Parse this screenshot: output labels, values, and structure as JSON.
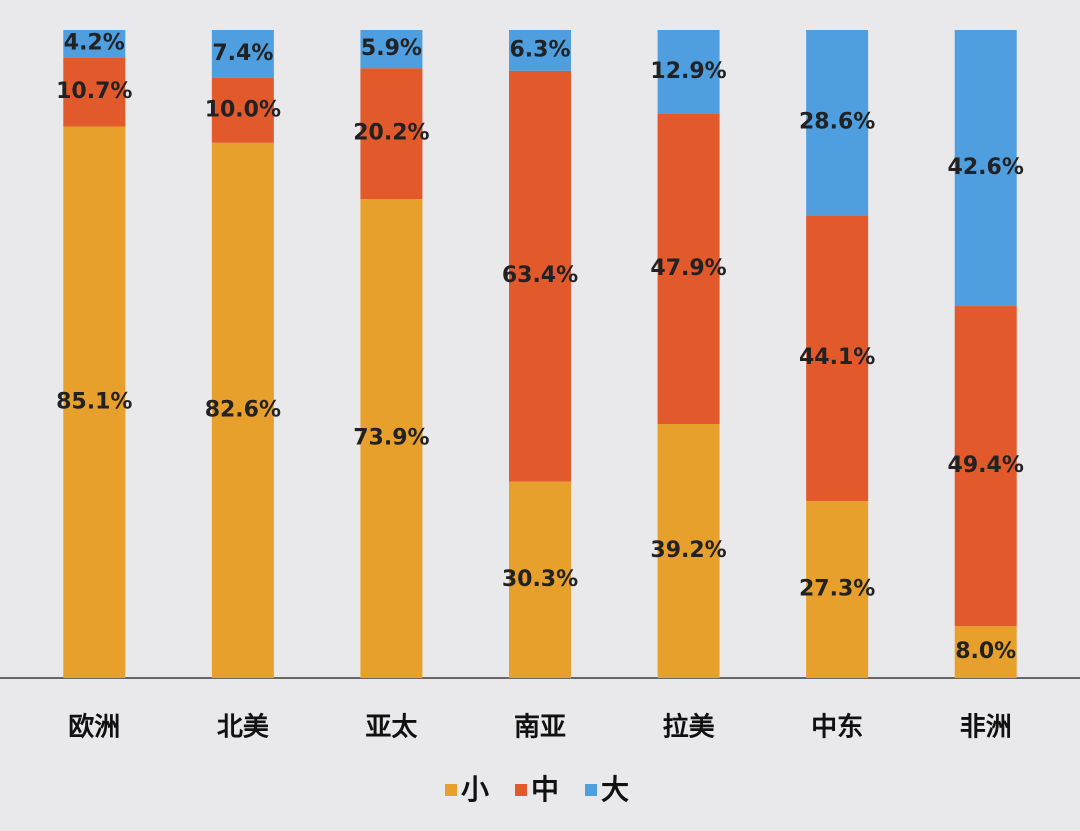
{
  "chart_data": {
    "type": "stacked_bar",
    "categories": [
      "欧洲",
      "北美",
      "亚太",
      "南亚",
      "拉美",
      "中东",
      "非洲"
    ],
    "series": [
      {
        "name": "小",
        "color": "#e8a02c",
        "values": [
          85.1,
          82.6,
          73.9,
          30.3,
          39.2,
          27.3,
          8.0
        ],
        "value_labels": [
          "85.1%",
          "82.6%",
          "73.9%",
          "30.3%",
          "39.2%",
          "27.3%",
          "8.0%"
        ]
      },
      {
        "name": "中",
        "color": "#e2592c",
        "values": [
          10.7,
          10.0,
          20.2,
          63.4,
          47.9,
          44.1,
          49.4
        ],
        "value_labels": [
          "10.7%",
          "10.0%",
          "20.2%",
          "63.4%",
          "47.9%",
          "44.1%",
          "49.4%"
        ]
      },
      {
        "name": "大",
        "color": "#4f9fe0",
        "values": [
          4.2,
          7.4,
          5.9,
          6.3,
          12.9,
          28.6,
          42.6
        ],
        "value_labels": [
          "4.2%",
          "7.4%",
          "5.9%",
          "6.3%",
          "12.9%",
          "28.6%",
          "42.6%"
        ]
      }
    ]
  }
}
